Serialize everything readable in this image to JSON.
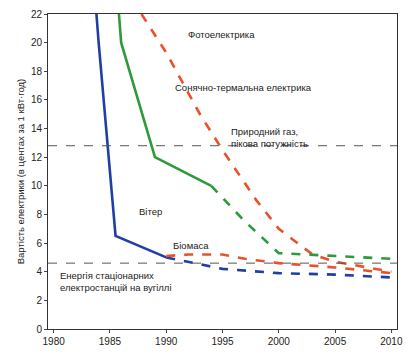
{
  "chart_data": {
    "type": "line",
    "y_label": "Вартість електрики (в центах за 1 кВт·год)",
    "xlim": [
      1979.5,
      2010.5
    ],
    "xticks": [
      1980,
      1985,
      1990,
      1995,
      2000,
      2005,
      2010
    ],
    "ylim": [
      0,
      22
    ],
    "yticks": [
      0,
      2,
      4,
      6,
      8,
      10,
      12,
      14,
      16,
      18,
      20,
      22
    ],
    "grid": false,
    "series": [
      {
        "name": "Фотоелектрика",
        "color": "#e8512a",
        "line_style": "dash",
        "x": [
          1987.8,
          1990,
          1993,
          1995,
          1998,
          2000,
          2003,
          2005,
          2010
        ],
        "values": [
          22,
          19.3,
          15,
          12.5,
          9,
          7,
          5.2,
          4.7,
          4.0
        ]
      },
      {
        "name": "Сонячно-термальна електрика",
        "color": "#2e9a3a",
        "line_style": "solid",
        "x": [
          1985.8,
          1986,
          1989,
          1994
        ],
        "values": [
          22,
          20,
          12,
          10
        ]
      },
      {
        "name": "Сонячно-термальна електрика",
        "color": "#2e9a3a",
        "line_style": "dash",
        "x": [
          1994,
          1997,
          2000,
          2005,
          2010
        ],
        "values": [
          10,
          7.5,
          5.3,
          5.1,
          4.9
        ]
      },
      {
        "name": "Вітер",
        "color": "#1f3fa6",
        "line_style": "solid",
        "x": [
          1983.8,
          1984,
          1985.5,
          1990
        ],
        "values": [
          22,
          20,
          6.5,
          5
        ]
      },
      {
        "name": "Вітер",
        "color": "#1f3fa6",
        "line_style": "dash",
        "x": [
          1990,
          1995,
          2000,
          2005,
          2010
        ],
        "values": [
          5,
          4.2,
          3.9,
          3.8,
          3.6
        ]
      },
      {
        "name": "Біомаса",
        "color": "#e8512a",
        "line_style": "dash",
        "x": [
          1990,
          1992,
          1995,
          1997,
          2000,
          2005,
          2010
        ],
        "values": [
          5.1,
          5.2,
          5.2,
          4.9,
          4.6,
          4.3,
          3.9
        ]
      },
      {
        "name": "Природний газ,\nпікова потужність",
        "color": "#555555",
        "line_style": "dash",
        "x": [
          1979.5,
          2010.5
        ],
        "values": [
          12.8,
          12.8
        ]
      },
      {
        "name": "Енергія стаціонарних\nелектростанцій на вугіллі",
        "color": "#555555",
        "line_style": "dash",
        "x": [
          1979.5,
          2010.5
        ],
        "values": [
          4.6,
          4.6
        ]
      }
    ]
  }
}
